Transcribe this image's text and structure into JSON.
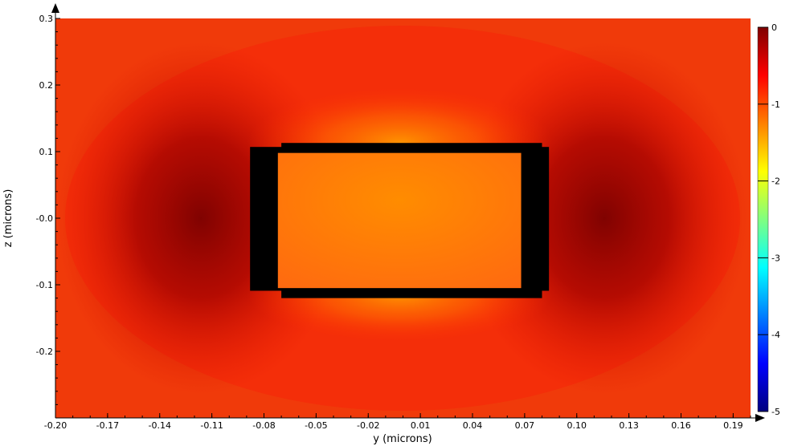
{
  "chart_data": {
    "type": "heatmap",
    "xlabel": "y (microns)",
    "ylabel": "z (microns)",
    "xlim": [
      -0.2,
      0.2
    ],
    "ylim": [
      -0.3,
      0.3
    ],
    "x_ticks": [
      "-0.20",
      "-0.17",
      "-0.14",
      "-0.11",
      "-0.08",
      "-0.05",
      "-0.02",
      "0.01",
      "0.04",
      "0.07",
      "0.10",
      "0.13",
      "0.16",
      "0.19"
    ],
    "x_tick_values": [
      -0.2,
      -0.17,
      -0.14,
      -0.11,
      -0.08,
      -0.05,
      -0.02,
      0.01,
      0.04,
      0.07,
      0.1,
      0.13,
      0.16,
      0.19
    ],
    "y_ticks": [
      "0.3",
      "0.2",
      "0.1",
      "-0.0",
      "-0.1",
      "-0.2"
    ],
    "y_tick_values": [
      0.3,
      0.2,
      0.1,
      0.0,
      -0.1,
      -0.2
    ],
    "colorbar": {
      "ticks": [
        "0",
        "-1",
        "-2",
        "-3",
        "-4",
        "-5"
      ],
      "tick_values": [
        0,
        -1,
        -2,
        -3,
        -4,
        -5
      ],
      "range": [
        -5,
        0
      ],
      "colormap": [
        "#00007f",
        "#0000ff",
        "#00ffff",
        "#ffff00",
        "#ff7f00",
        "#ff0000",
        "#7f0000"
      ]
    },
    "field": {
      "background_level": -0.85,
      "core_level": -1.15,
      "dark_lobe_level": -0.15,
      "bright_halo_level": -1.35
    },
    "waveguide": {
      "core_y": [
        -0.072,
        0.068
      ],
      "core_z": [
        -0.105,
        0.098
      ],
      "outline_y": [
        -0.088,
        0.084
      ],
      "outline_z": [
        -0.12,
        0.113
      ],
      "outline_color": "#000000"
    }
  }
}
